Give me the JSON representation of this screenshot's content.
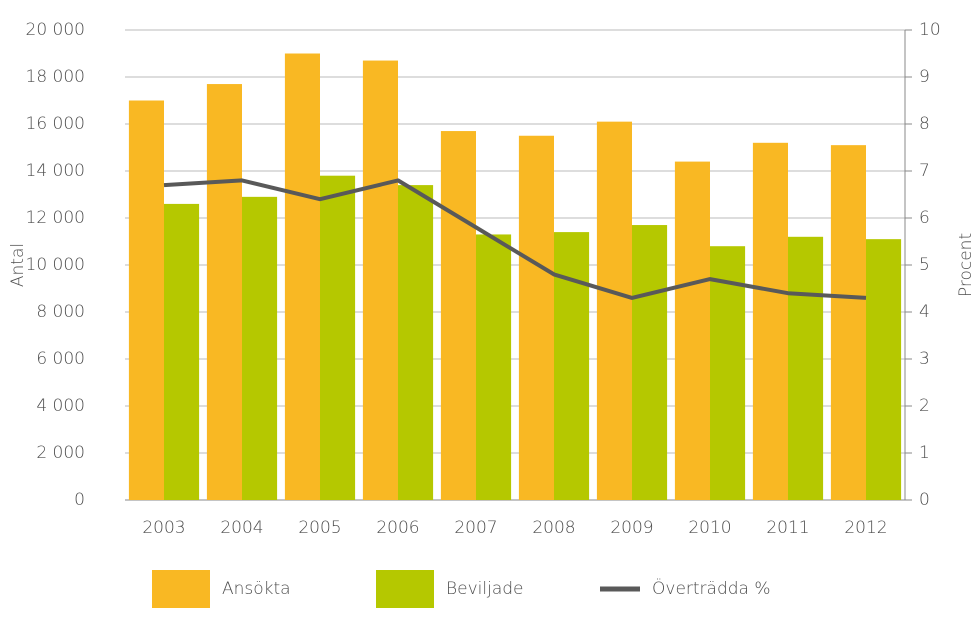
{
  "chart_data": {
    "type": "bar",
    "categories": [
      "2003",
      "2004",
      "2005",
      "2006",
      "2007",
      "2008",
      "2009",
      "2010",
      "2011",
      "2012"
    ],
    "series": [
      {
        "name": "Ansökta",
        "color": "#f9b823",
        "values": [
          17000,
          17700,
          19000,
          18700,
          15700,
          15500,
          16100,
          14400,
          15200,
          15100
        ]
      },
      {
        "name": "Beviljade",
        "color": "#b5c800",
        "values": [
          12600,
          12900,
          13800,
          13400,
          11300,
          11400,
          11700,
          10800,
          11200,
          11100
        ]
      },
      {
        "name": "Överträdda %",
        "color": "#595959",
        "type": "line",
        "axis": "y2",
        "values": [
          6.7,
          6.8,
          6.4,
          6.8,
          5.8,
          4.8,
          4.3,
          4.7,
          4.4,
          4.3
        ]
      }
    ],
    "ylabel": "Antal",
    "y2label": "Procent",
    "ylim": [
      0,
      20000
    ],
    "yticks": [
      0,
      {
        "value": 2000,
        "label": "2 000"
      },
      {
        "value": 4000,
        "label": "4 000"
      },
      {
        "value": 6000,
        "label": "6 000"
      },
      {
        "value": 8000,
        "label": "8 000"
      },
      {
        "value": 10000,
        "label": "10 000"
      },
      {
        "value": 12000,
        "label": "12 000"
      },
      {
        "value": 14000,
        "label": "14 000"
      },
      {
        "value": 16000,
        "label": "16 000"
      },
      {
        "value": 18000,
        "label": "18 000"
      },
      {
        "value": 20000,
        "label": "20 000"
      }
    ],
    "y2lim": [
      0,
      10
    ],
    "y2ticks": [
      0,
      1,
      2,
      3,
      4,
      5,
      6,
      7,
      8,
      9,
      10
    ],
    "grid": true,
    "legend": "bottom"
  }
}
